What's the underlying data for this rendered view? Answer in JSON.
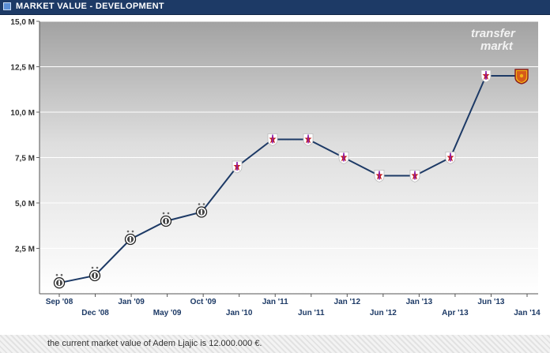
{
  "header": {
    "title": "MARKET VALUE - DEVELOPMENT"
  },
  "watermark": {
    "line1": "transfer",
    "line2": "markt"
  },
  "footer": {
    "text": "the current market value of Adem Ljajic is 12.000.000 €."
  },
  "colors": {
    "line": "#1d3a66",
    "header": "#1d3a66",
    "fiorentina": "#8a1fb0",
    "roma": "#d65a1a"
  },
  "chart_data": {
    "type": "line",
    "title": "MARKET VALUE - DEVELOPMENT",
    "xlabel": "",
    "ylabel": "",
    "ylim": [
      0,
      15
    ],
    "y_ticks": [
      "2,5 M",
      "5,0 M",
      "7,5 M",
      "10,0 M",
      "12,5 M",
      "15,0 M"
    ],
    "x_ticks_top": [
      "Sep '08",
      "Jan '09",
      "Oct '09",
      "Jan '11",
      "Jan '12",
      "Jan '13",
      "Jun '13"
    ],
    "x_ticks_bottom": [
      "Dec '08",
      "May '09",
      "Jan '10",
      "Jun '11",
      "Jun '12",
      "Apr '13",
      "Jan '14"
    ],
    "grid": true,
    "series": [
      {
        "values": [
          0.6,
          1.0,
          3.0,
          4.0,
          4.5,
          7.0,
          8.5,
          8.5,
          7.5,
          6.5,
          6.5,
          7.5,
          12.0,
          12.0
        ],
        "clubs": [
          "partizan",
          "partizan",
          "partizan",
          "partizan",
          "partizan",
          "fiorentina",
          "fiorentina",
          "fiorentina",
          "fiorentina",
          "fiorentina",
          "fiorentina",
          "fiorentina",
          "fiorentina",
          "roma"
        ]
      }
    ]
  }
}
